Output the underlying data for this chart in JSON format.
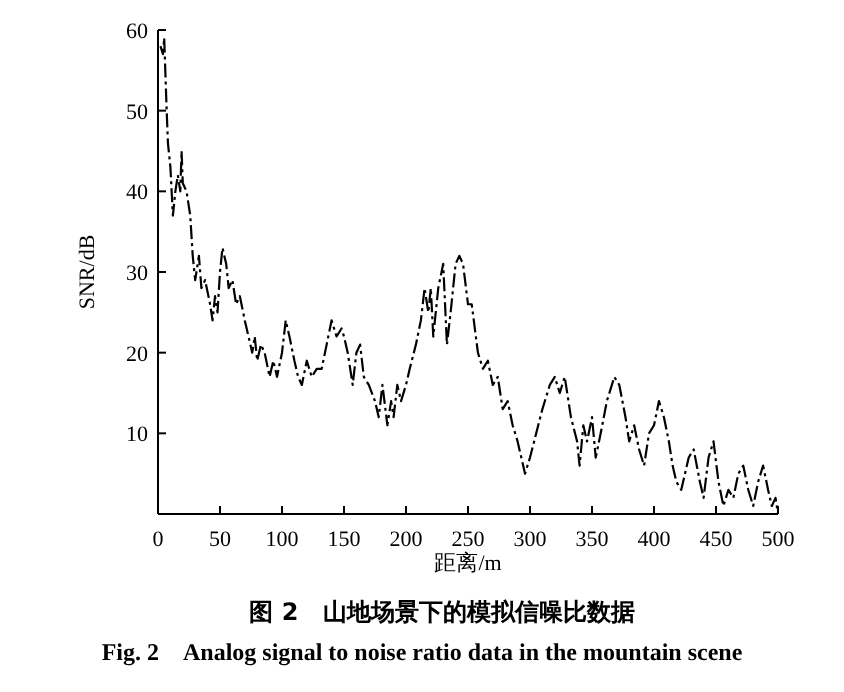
{
  "chart_data": {
    "type": "line",
    "title": "图 2　山地场景下的模拟信噪比数据",
    "subtitle": "Fig. 2　Analog signal to noise ratio data in the mountain scene",
    "xlabel": "距离/m",
    "ylabel": "SNR/dB",
    "xlim": [
      0,
      500
    ],
    "xticks": [
      0,
      50,
      100,
      150,
      200,
      250,
      300,
      350,
      400,
      450,
      500
    ],
    "ylim": [
      0,
      60
    ],
    "yticks": [
      10,
      20,
      30,
      40,
      50,
      60
    ],
    "grid": false,
    "line_style": "dashed",
    "series": [
      {
        "color": "#000000",
        "x": [
          2,
          4,
          5,
          7,
          8,
          10,
          12,
          14,
          16,
          18,
          19,
          20,
          23,
          26,
          28,
          30,
          33,
          35,
          38,
          42,
          44,
          46,
          48,
          50,
          52,
          55,
          57,
          60,
          63,
          66,
          70,
          73,
          76,
          78,
          80,
          83,
          86,
          90,
          93,
          96,
          100,
          103,
          106,
          110,
          113,
          116,
          120,
          124,
          128,
          132,
          136,
          140,
          144,
          148,
          150,
          153,
          157,
          160,
          163,
          166,
          170,
          175,
          178,
          181,
          185,
          188,
          190,
          193,
          196,
          200,
          203,
          208,
          212,
          215,
          218,
          220,
          222,
          226,
          230,
          233,
          236,
          240,
          243,
          246,
          250,
          253,
          258,
          262,
          266,
          270,
          274,
          278,
          282,
          286,
          290,
          296,
          300,
          305,
          310,
          316,
          320,
          324,
          328,
          333,
          338,
          340,
          343,
          346,
          350,
          353,
          357,
          362,
          368,
          372,
          377,
          380,
          384,
          388,
          392,
          396,
          400,
          404,
          408,
          412,
          415,
          418,
          422,
          428,
          432,
          437,
          440,
          444,
          448,
          452,
          456,
          460,
          464,
          468,
          472,
          476,
          480,
          484,
          488,
          492,
          495,
          498,
          500
        ],
        "values": [
          58,
          57,
          59,
          50,
          46,
          43,
          37,
          40,
          42,
          40,
          45,
          41,
          40,
          37,
          32,
          29,
          32,
          28,
          29,
          26,
          24,
          27,
          25,
          30,
          33,
          31,
          28,
          29,
          26,
          27,
          24,
          22,
          20,
          22,
          19,
          21,
          20,
          17,
          19,
          17,
          20,
          24,
          22,
          19,
          17,
          16,
          19,
          17,
          18,
          18,
          21,
          24,
          22,
          23,
          22,
          20,
          16,
          20,
          21,
          17,
          16,
          14,
          12,
          16,
          11,
          14,
          12,
          16,
          14,
          16,
          18,
          21,
          24,
          28,
          25,
          28,
          22,
          28,
          31,
          21,
          25,
          31,
          32,
          31,
          26,
          26,
          20,
          18,
          19,
          16,
          17,
          13,
          14,
          11,
          9,
          5,
          7,
          10,
          13,
          16,
          17,
          15,
          17,
          12,
          9,
          6,
          11,
          9,
          12,
          7,
          10,
          14,
          17,
          16,
          12,
          9,
          11,
          8,
          6,
          10,
          11,
          14,
          12,
          9,
          6,
          4,
          3,
          7,
          8,
          4,
          2,
          7,
          9,
          4,
          1,
          3,
          2,
          5,
          6,
          3,
          1,
          4,
          6,
          3,
          1,
          2,
          0
        ]
      }
    ]
  }
}
